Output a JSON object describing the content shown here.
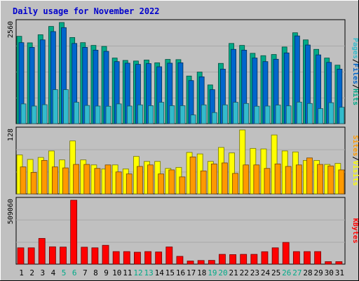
{
  "colors": {
    "frame": "#c0c0c0",
    "panel": "#c0c0c0",
    "title": "#0000cc",
    "hits": "#00aa88",
    "files": "#0066cc",
    "pages": "#33bbcc",
    "visits": "#ffff00",
    "sites": "#ff9900",
    "kbytes": "#ff0000",
    "weekend": "#00aa88",
    "weekday": "#000000"
  },
  "chart_data": {
    "type": "bar",
    "title": "Daily usage for November 2022",
    "categories": [
      "1",
      "2",
      "3",
      "4",
      "5",
      "6",
      "7",
      "8",
      "9",
      "10",
      "11",
      "12",
      "13",
      "14",
      "15",
      "16",
      "17",
      "18",
      "19",
      "20",
      "21",
      "22",
      "23",
      "24",
      "25",
      "26",
      "27",
      "28",
      "29",
      "30",
      "31"
    ],
    "weekend_days": [
      "5",
      "6",
      "12",
      "13",
      "19",
      "20",
      "26",
      "27"
    ],
    "panels": [
      {
        "name": "top",
        "ylim": [
          0,
          2560
        ],
        "max_label": "2560",
        "labels": [
          "Pages",
          "/",
          "Files",
          "/",
          "Hits"
        ],
        "label_colors": [
          "pages",
          "black",
          "files",
          "black",
          "hits"
        ],
        "series": [
          {
            "name": "Hits",
            "color_key": "hits",
            "values": [
              2210,
              2045,
              2250,
              2460,
              2560,
              2180,
              2050,
              1980,
              1955,
              1660,
              1600,
              1585,
              1610,
              1540,
              1625,
              1620,
              1205,
              1305,
              980,
              1525,
              2030,
              1980,
              1780,
              1720,
              1750,
              1940,
              2300,
              2120,
              1880,
              1660,
              1480
            ]
          },
          {
            "name": "Files",
            "color_key": "files",
            "values": [
              2050,
              1930,
              2120,
              2330,
              2430,
              2030,
              1930,
              1860,
              1830,
              1570,
              1530,
              1500,
              1520,
              1440,
              1530,
              1540,
              1090,
              1185,
              860,
              1380,
              1880,
              1860,
              1660,
              1570,
              1630,
              1790,
              2220,
              1990,
              1740,
              1550,
              1380
            ]
          },
          {
            "name": "Pages",
            "color_key": "pages",
            "values": [
              500,
              445,
              480,
              860,
              860,
              540,
              460,
              445,
              440,
              500,
              445,
              475,
              455,
              540,
              455,
              455,
              220,
              475,
              280,
              475,
              540,
              510,
              440,
              445,
              470,
              450,
              545,
              510,
              380,
              530,
              415
            ]
          }
        ]
      },
      {
        "name": "middle",
        "ylim": [
          0,
          128
        ],
        "max_label": "128",
        "labels": [
          "Sites",
          "/",
          "Visits"
        ],
        "label_colors": [
          "sites",
          "black",
          "visits"
        ],
        "series": [
          {
            "name": "Visits",
            "color_key": "visits",
            "values": [
              78,
              69,
              73,
              86,
              68,
              106,
              68,
              58,
              50,
              58,
              50,
              75,
              65,
              65,
              51,
              53,
              83,
              80,
              65,
              93,
              82,
              128,
              91,
              90,
              118,
              86,
              84,
              67,
              67,
              59,
              61
            ]
          },
          {
            "name": "Sites",
            "color_key": "sites",
            "values": [
              54,
              43,
              67,
              54,
              52,
              59,
              59,
              51,
              58,
              44,
              40,
              55,
              58,
              40,
              48,
              34,
              74,
              46,
              60,
              62,
              41,
              58,
              58,
              51,
              60,
              55,
              58,
              72,
              59,
              56,
              48
            ]
          }
        ]
      },
      {
        "name": "bottom",
        "ylim": [
          0,
          509060
        ],
        "max_label": "509060",
        "labels": [
          "KBytes"
        ],
        "label_colors": [
          "kbytes"
        ],
        "series": [
          {
            "name": "KBytes",
            "color_key": "kbytes",
            "values": [
              130000,
              130000,
              205000,
              138000,
              136000,
              509060,
              135000,
              130000,
              150000,
              100000,
              100000,
              95000,
              100000,
              97000,
              137000,
              62000,
              25000,
              29000,
              30000,
              78000,
              76000,
              78000,
              78000,
              99000,
              130000,
              173000,
              100000,
              100000,
              100000,
              20000,
              20000
            ]
          }
        ]
      }
    ]
  }
}
